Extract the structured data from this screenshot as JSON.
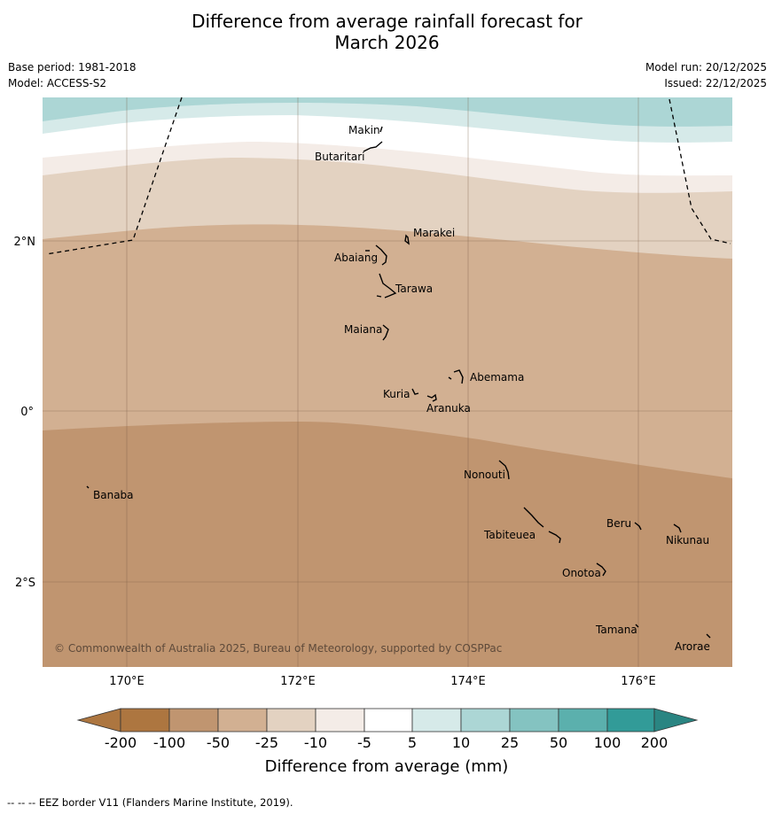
{
  "title_line1": "Difference from average rainfall forecast for",
  "title_line2": "March 2026",
  "header": {
    "base_period": "Base period: 1981-2018",
    "model": "Model: ACCESS-S2",
    "model_run": "Model run: 20/12/2025",
    "issued": "Issued: 22/12/2025"
  },
  "map": {
    "lon_ticks": [
      "170°E",
      "172°E",
      "174°E",
      "176°E"
    ],
    "lat_ticks": [
      "2°N",
      "0°",
      "2°S"
    ],
    "copyright": "© Commonwealth of Australia 2025, Bureau of Meteorology, supported by COSPPac",
    "places": [
      {
        "name": "Makin",
        "lon": 173.0,
        "lat": 3.3
      },
      {
        "name": "Butaritari",
        "lon": 172.8,
        "lat": 3.0
      },
      {
        "name": "Marakei",
        "lon": 173.3,
        "lat": 2.0
      },
      {
        "name": "Abaiang",
        "lon": 173.0,
        "lat": 1.8
      },
      {
        "name": "Tarawa",
        "lon": 173.0,
        "lat": 1.4
      },
      {
        "name": "Maiana",
        "lon": 173.0,
        "lat": 0.9
      },
      {
        "name": "Abemama",
        "lon": 173.9,
        "lat": 0.4
      },
      {
        "name": "Kuria",
        "lon": 173.4,
        "lat": 0.2
      },
      {
        "name": "Aranuka",
        "lon": 173.6,
        "lat": 0.2
      },
      {
        "name": "Nonouti",
        "lon": 174.4,
        "lat": -0.6
      },
      {
        "name": "Banaba",
        "lon": 169.5,
        "lat": -0.9
      },
      {
        "name": "Beru",
        "lon": 175.9,
        "lat": -1.3
      },
      {
        "name": "Nikunau",
        "lon": 176.4,
        "lat": -1.4
      },
      {
        "name": "Tabiteuea",
        "lon": 174.8,
        "lat": -1.3
      },
      {
        "name": "Onotoa",
        "lon": 175.6,
        "lat": -1.8
      },
      {
        "name": "Tamana",
        "lon": 176.0,
        "lat": -2.5
      },
      {
        "name": "Arorae",
        "lon": 176.8,
        "lat": -2.6
      }
    ]
  },
  "legend": {
    "labels": [
      "-200",
      "-100",
      "-50",
      "-25",
      "-10",
      "-5",
      "5",
      "10",
      "25",
      "50",
      "100",
      "200"
    ],
    "colors": [
      "#ad7640",
      "#c09570",
      "#d2b092",
      "#e3d2c1",
      "#f4ece7",
      "#ffffff",
      "#d6eae9",
      "#acd6d5",
      "#84c3c1",
      "#5bb0ad",
      "#329b98",
      "#2a8582"
    ],
    "title": "Difference from average (mm)"
  },
  "footer": "-- -- -- EEZ border V11 (Flanders Marine Institute, 2019)."
}
